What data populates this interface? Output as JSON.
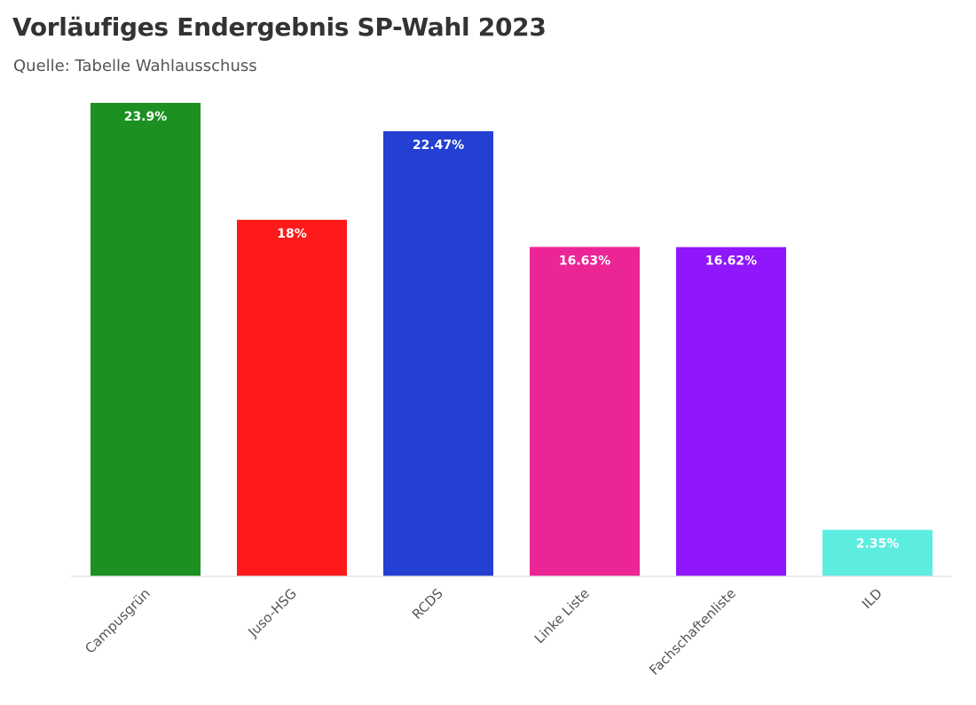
{
  "title": "Vorläufiges Endergebnis SP-Wahl 2023",
  "subtitle": "Quelle: Tabelle Wahlausschuss",
  "chart_data": {
    "type": "bar",
    "title": "Vorläufiges Endergebnis SP-Wahl 2023",
    "subtitle": "Quelle: Tabelle Wahlausschuss",
    "categories": [
      "Campusgrün",
      "Juso-HSG",
      "RCDS",
      "Linke Liste",
      "Fachschaftenliste",
      "ILD"
    ],
    "values": [
      23.9,
      18,
      22.47,
      16.63,
      16.62,
      2.35
    ],
    "value_labels": [
      "23.9%",
      "18%",
      "22.47%",
      "16.63%",
      "16.62%",
      "2.35%"
    ],
    "colors": [
      "#1c9020",
      "#fe1a1a",
      "#2340d2",
      "#ec2596",
      "#9016fc",
      "#5cede0"
    ],
    "xlabel": "",
    "ylabel": "",
    "ylim": [
      0,
      23.9
    ],
    "grid": false,
    "legend": "none"
  }
}
